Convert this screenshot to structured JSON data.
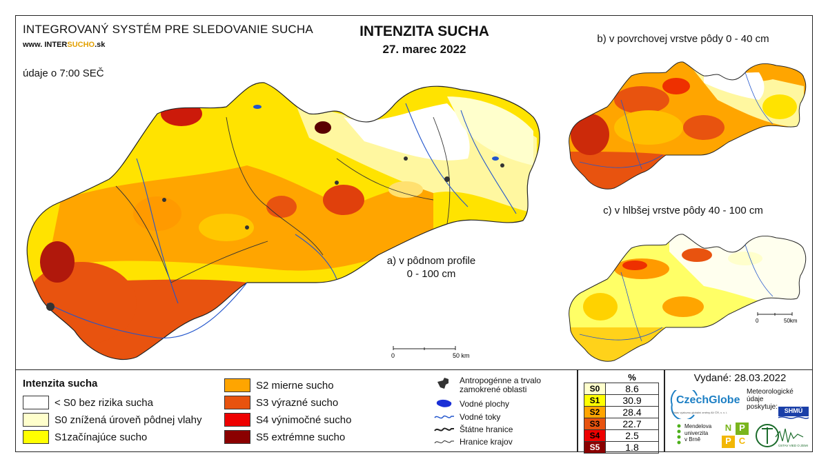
{
  "header": {
    "system_title": "INTEGROVANÝ SYSTÉM PRE SLEDOVANIE SUCHA",
    "website_prefix": "www. INTER",
    "website_brand": "SUCHO",
    "website_suffix": ".sk",
    "time_note": "údaje o 7:00 SEČ",
    "title": "INTENZITA SUCHA",
    "date": "27. marec 2022"
  },
  "maps": {
    "main_caption_line1": "a) v pôdnom profile",
    "main_caption_line2": "0 - 100 cm",
    "surface_caption": "b) v povrchovej vrstve pôdy 0 - 40 cm",
    "deep_caption": "c) v hlbšej vrstve pôdy 40 - 100 cm",
    "main_scale_start": "0",
    "main_scale_end": "50 km",
    "small_scale_start": "0",
    "small_scale_end": "50km"
  },
  "legend": {
    "title": "Intenzita sucha",
    "classes": [
      {
        "label": "< S0 bez rizika sucha",
        "color": "#ffffff"
      },
      {
        "label": "S0 znížená úroveň pôdnej vlahy",
        "color": "#ffffcc"
      },
      {
        "label": "S1začínajúce sucho",
        "color": "#ffff00"
      },
      {
        "label": "S2 mierne sucho",
        "color": "#ffa500"
      },
      {
        "label": "S3 výrazné sucho",
        "color": "#e8530f"
      },
      {
        "label": "S4 výnimočné sucho",
        "color": "#ee0000"
      },
      {
        "label": "S5 extrémne sucho",
        "color": "#8b0000"
      }
    ],
    "symbols": [
      {
        "label": "Antropogénne a trvalo zamokrené oblasti",
        "icon": "urban-area-icon"
      },
      {
        "label": "Vodné plochy",
        "icon": "water-body-icon"
      },
      {
        "label": "Vodné toky",
        "icon": "river-icon"
      },
      {
        "label": "Štátne hranice",
        "icon": "state-border-icon"
      },
      {
        "label": "Hranice krajov",
        "icon": "region-border-icon"
      }
    ]
  },
  "percent_table": {
    "header": "%",
    "rows": [
      {
        "code": "S0",
        "value": "8.6",
        "color": "#ffffcc"
      },
      {
        "code": "S1",
        "value": "30.9",
        "color": "#ffff00"
      },
      {
        "code": "S2",
        "value": "28.4",
        "color": "#ffa500"
      },
      {
        "code": "S3",
        "value": "22.7",
        "color": "#e8530f"
      },
      {
        "code": "S4",
        "value": "2.5",
        "color": "#ee0000"
      },
      {
        "code": "S5",
        "value": "1.8",
        "color": "#8b0000"
      }
    ]
  },
  "issue": {
    "issued": "Vydané: 28.03.2022",
    "czechglobe": "CzechGlobe",
    "czechglobe_sub": "Ústav výzkumu globální změny AV ČR, v. v. i.",
    "meteo_label_1": "Meteorologické",
    "meteo_label_2": "údaje",
    "meteo_label_3": "poskytuje:",
    "shmu": "SHMÚ",
    "mendel_1": "Mendelova",
    "mendel_2": "univerzita",
    "mendel_3": "v Brně",
    "npp": [
      "N",
      "P",
      "P",
      "C"
    ],
    "ustav": "ÚSTAV VIED O ZEMI"
  }
}
